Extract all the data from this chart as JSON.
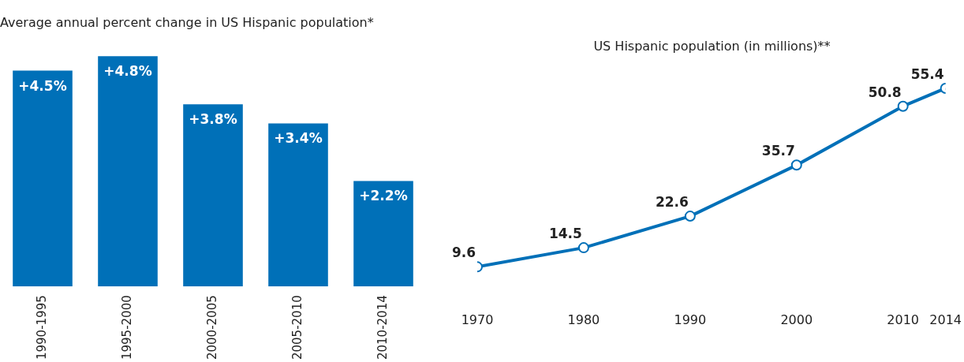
{
  "chart_data": [
    {
      "type": "bar",
      "title": "Average annual percent change in US Hispanic population*",
      "categories": [
        "1990-1995",
        "1995-2000",
        "2000-2005",
        "2005-2010",
        "2010-2014"
      ],
      "values": [
        4.5,
        4.8,
        3.8,
        3.4,
        2.2
      ],
      "value_labels": [
        "+4.5%",
        "+4.8%",
        "+3.8%",
        "+3.4%",
        "+2.2%"
      ],
      "color": "#0070b8",
      "grid": false,
      "legend": false,
      "tick_labels": "x"
    },
    {
      "type": "line",
      "title": "US Hispanic population (in millions)**",
      "x": [
        1970,
        1980,
        1990,
        2000,
        2010,
        2014
      ],
      "values": [
        9.6,
        14.5,
        22.6,
        35.7,
        50.8,
        55.4
      ],
      "color": "#0070b8",
      "xlim": [
        1970,
        2014
      ],
      "xticks": [
        1970,
        1980,
        1990,
        2000,
        2010,
        2014
      ],
      "data_labels": true,
      "marker": "circle",
      "line_style": "solid",
      "grid": false,
      "legend": false,
      "tick_labels": "x"
    }
  ]
}
